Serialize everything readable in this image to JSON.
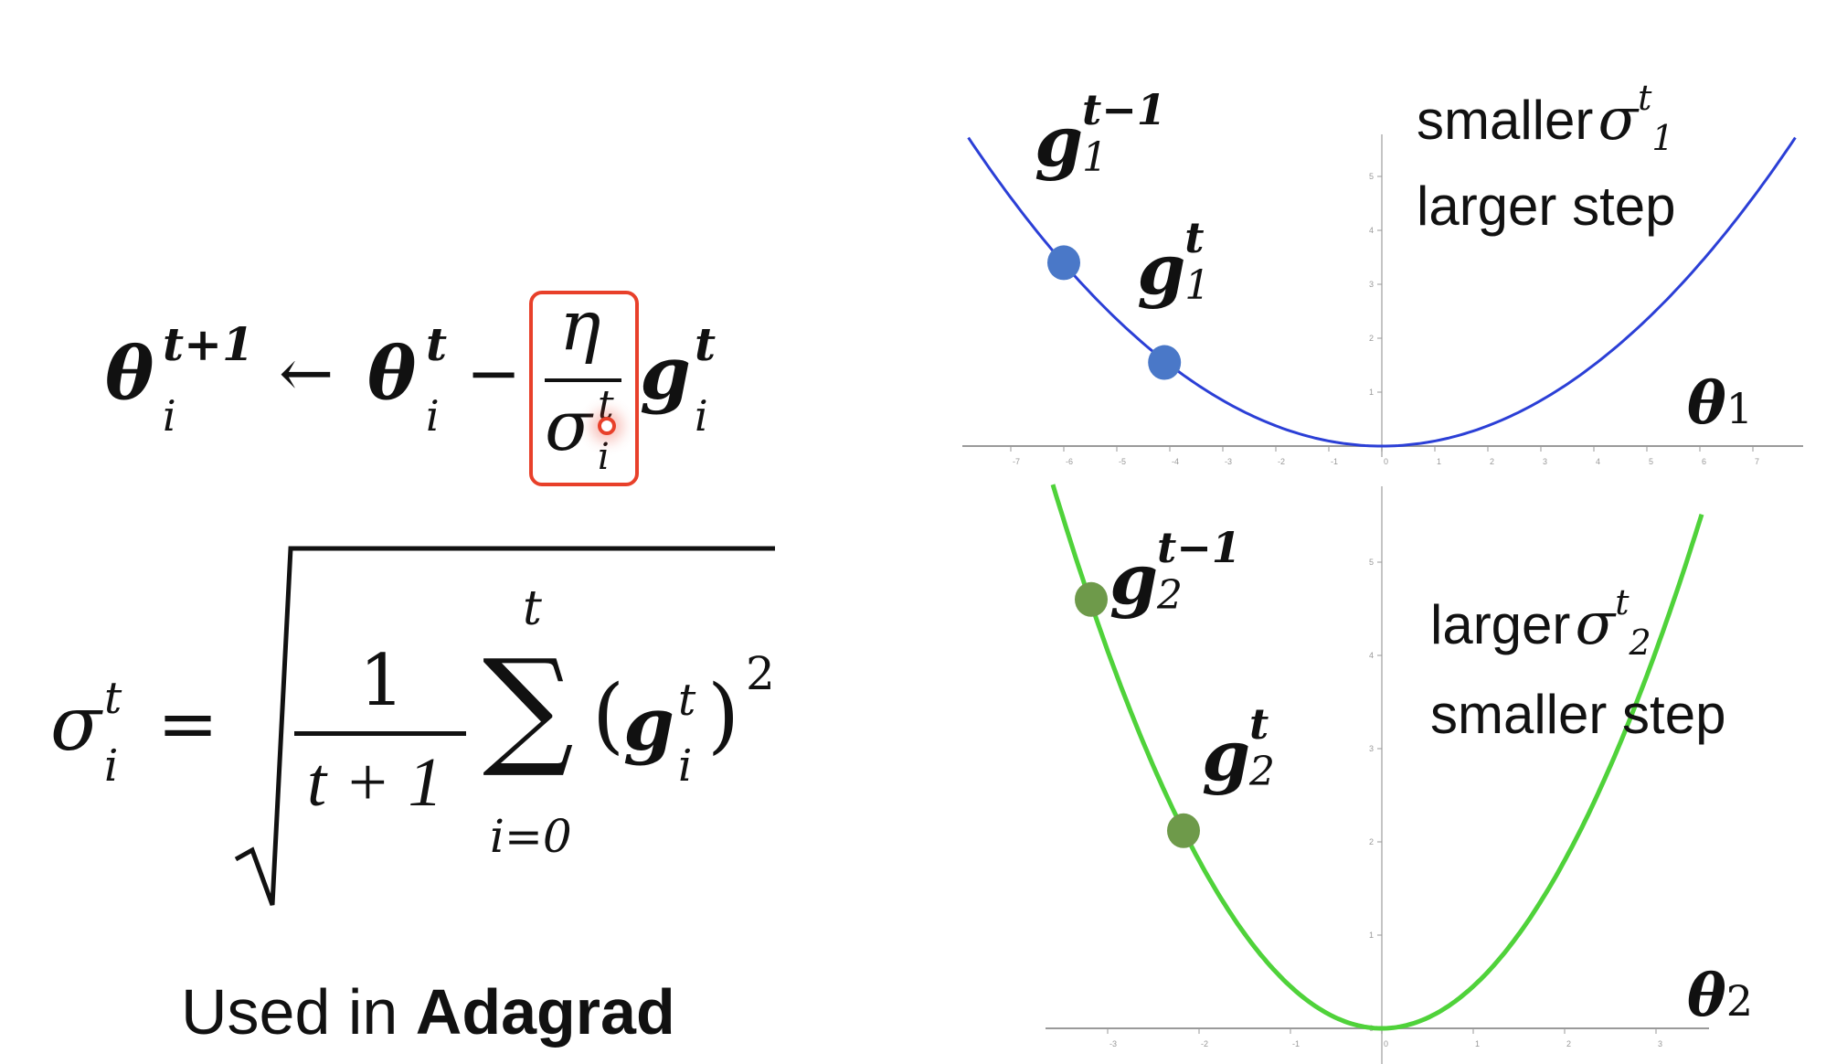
{
  "update_rule": {
    "lhs": "θ",
    "lhs_sup": "t+1",
    "lhs_sub": "i",
    "arrow": "←",
    "theta": "θ",
    "theta_sup": "t",
    "theta_sub": "i",
    "minus": "−",
    "eta": "η",
    "sigma": "σ",
    "sigma_sup": "t",
    "sigma_sub": "i",
    "g": "g",
    "g_sup": "t",
    "g_sub": "i",
    "highlight_color": "#e8402a"
  },
  "sigma_formula": {
    "sigma": "σ",
    "sigma_sup": "t",
    "sigma_sub": "i",
    "equals": "=",
    "numerator": "1",
    "denominator": "t + 1",
    "sum_upper": "t",
    "sum_symbol": "∑",
    "sum_lower": "i=0",
    "term_open": "(",
    "term_g": "g",
    "term_sup": "t",
    "term_sub": "i",
    "term_close": ")",
    "power": "2"
  },
  "caption": {
    "prefix": "Used in ",
    "bold": "Adagrad"
  },
  "chart_data": [
    {
      "type": "line",
      "function": "y = 0.094 x^2",
      "x_range": [
        -7.8,
        7.8
      ],
      "x_ticks": [
        -7,
        -6,
        -5,
        -4,
        -3,
        -2,
        -1,
        0,
        1,
        2,
        3,
        4,
        5,
        6,
        7
      ],
      "y_ticks": [
        1,
        2,
        3,
        4,
        5
      ],
      "curve_color": "#2b3fd6",
      "point_color": "#4a78c8",
      "axis_label": "θ",
      "axis_label_sub": "1",
      "points": [
        {
          "x": -6.0,
          "y": 3.4,
          "label": "g",
          "label_sup": "t−1",
          "label_sub": "1"
        },
        {
          "x": -4.1,
          "y": 1.55,
          "label": "g",
          "label_sup": "t",
          "label_sub": "1"
        }
      ],
      "annotation_line1": "smaller",
      "annotation_sigma": "σ",
      "annotation_sigma_sup": "t",
      "annotation_sigma_sub": "1",
      "annotation_line2": "larger step"
    },
    {
      "type": "line",
      "function": "y = 0.45 x^2",
      "x_range": [
        -3.6,
        3.5
      ],
      "x_ticks": [
        -3,
        -2,
        -1,
        0,
        1,
        2,
        3
      ],
      "y_ticks": [
        0,
        1,
        2,
        3,
        4,
        5
      ],
      "curve_color": "#4fd23a",
      "point_color": "#6e9a4a",
      "axis_label": "θ",
      "axis_label_sub": "2",
      "points": [
        {
          "x": -3.18,
          "y": 4.6,
          "label": "g",
          "label_sup": "t−1",
          "label_sub": "2"
        },
        {
          "x": -2.17,
          "y": 2.12,
          "label": "g",
          "label_sup": "t",
          "label_sub": "2"
        }
      ],
      "annotation_line1": "larger",
      "annotation_sigma": "σ",
      "annotation_sigma_sup": "t",
      "annotation_sigma_sub": "2",
      "annotation_line2": "smaller step"
    }
  ]
}
